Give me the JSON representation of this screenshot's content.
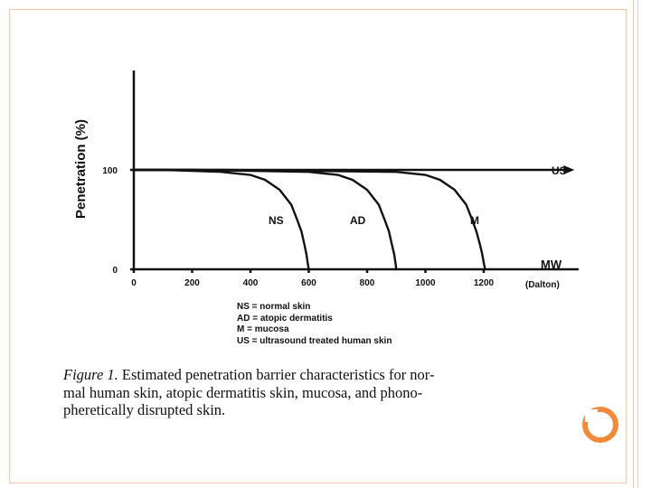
{
  "chart_data": {
    "type": "line",
    "title": "",
    "xlabel": "MW",
    "x_unit_label": "(Dalton)",
    "ylabel": "Penetration (%)",
    "xlim": [
      0,
      1600
    ],
    "ylim": [
      0,
      200
    ],
    "x_ticks": [
      "0",
      "200",
      "400",
      "600",
      "800",
      "1000",
      "1200"
    ],
    "y_ticks": [
      "0",
      "100"
    ],
    "grid": false,
    "series": [
      {
        "name": "NS",
        "x": [
          0,
          100,
          200,
          300,
          400,
          450,
          500,
          540,
          560,
          575,
          585,
          592,
          597,
          600
        ],
        "y": [
          100,
          100,
          99,
          98,
          95,
          90,
          80,
          65,
          50,
          38,
          25,
          15,
          5,
          0
        ]
      },
      {
        "name": "AD",
        "x": [
          0,
          200,
          400,
          600,
          700,
          750,
          800,
          840,
          860,
          875,
          885,
          893,
          898,
          900
        ],
        "y": [
          100,
          100,
          99,
          98,
          95,
          90,
          80,
          65,
          50,
          38,
          25,
          15,
          5,
          0
        ]
      },
      {
        "name": "M",
        "x": [
          0,
          300,
          600,
          900,
          1000,
          1050,
          1100,
          1140,
          1160,
          1175,
          1187,
          1195,
          1201,
          1205
        ],
        "y": [
          100,
          100,
          99,
          98,
          95,
          90,
          80,
          65,
          50,
          38,
          25,
          15,
          5,
          0
        ]
      },
      {
        "name": "US",
        "x": [
          0,
          1480
        ],
        "y": [
          100,
          100
        ]
      }
    ]
  },
  "legend": [
    "NS = normal skin",
    "AD = atopic dermatitis",
    "M = mucosa",
    "US = ultrasound treated human skin"
  ],
  "caption": {
    "lead": "Figure 1.",
    "line1_rest": " Estimated penetration barrier characteristics for nor-",
    "line2": "mal human skin, atopic dermatitis skin, mucosa, and phono-",
    "line3": "pheretically disrupted skin."
  },
  "colors": {
    "frame_border": "#f3c9b3",
    "badge_orange": "#f28a3c",
    "ink": "#111111"
  }
}
